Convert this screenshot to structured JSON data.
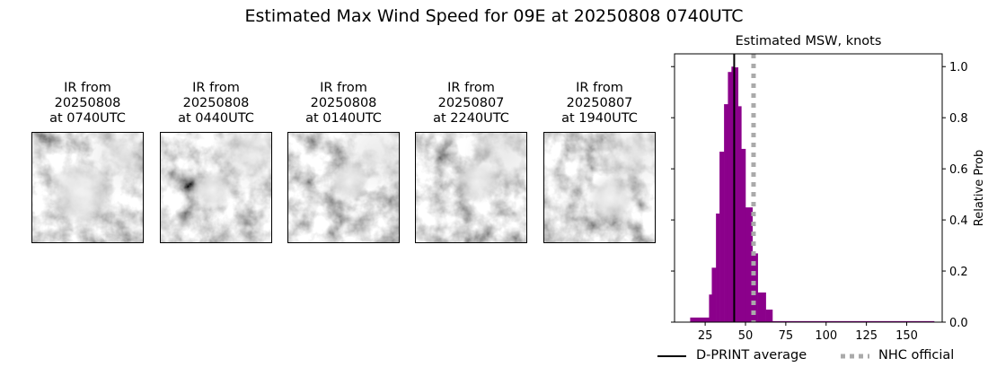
{
  "title": "Estimated Max Wind Speed for 09E at 20250808 0740UTC",
  "panels": [
    {
      "line1": "IR from",
      "line2": "20250808",
      "line3": "at 0740UTC",
      "seed": 3,
      "blob": [
        0.45,
        0.55,
        0.3
      ]
    },
    {
      "line1": "IR from",
      "line2": "20250808",
      "line3": "at 0440UTC",
      "seed": 7,
      "blob": [
        0.47,
        0.52,
        0.18
      ]
    },
    {
      "line1": "IR from",
      "line2": "20250808",
      "line3": "at 0140UTC",
      "seed": 11,
      "blob": [
        0.55,
        0.45,
        0.18
      ]
    },
    {
      "line1": "IR from",
      "line2": "20250807",
      "line3": "at 2240UTC",
      "seed": 17,
      "blob": [
        0.55,
        0.45,
        0.2
      ]
    },
    {
      "line1": "IR from",
      "line2": "20250807",
      "line3": "at 1940UTC",
      "seed": 23,
      "blob": [
        0.6,
        0.6,
        0.22
      ]
    }
  ],
  "chart_data": {
    "type": "bar",
    "title": "Estimated MSW, knots",
    "xlabel": "",
    "ylabel": "Relative Prob",
    "xlim": [
      6,
      172
    ],
    "ylim": [
      0,
      1.05
    ],
    "xticks": [
      25,
      50,
      75,
      100,
      125,
      150
    ],
    "yticks": [
      "0.0",
      "0.2",
      "0.4",
      "0.6",
      "0.8",
      "1.0"
    ],
    "bar_color": "#8b008b",
    "bins": [
      [
        15.7,
        27.4,
        0.018
      ],
      [
        27.4,
        29.1,
        0.108
      ],
      [
        29.1,
        31.7,
        0.213
      ],
      [
        31.7,
        33.9,
        0.425
      ],
      [
        33.9,
        36.7,
        0.667
      ],
      [
        36.7,
        39.1,
        0.853
      ],
      [
        39.1,
        41.3,
        0.979
      ],
      [
        41.3,
        43.2,
        1.0
      ],
      [
        43.2,
        45.4,
        0.997
      ],
      [
        45.4,
        47.4,
        0.845
      ],
      [
        47.4,
        50.0,
        0.678
      ],
      [
        50.0,
        54.3,
        0.449
      ],
      [
        54.3,
        57.6,
        0.269
      ],
      [
        57.6,
        62.6,
        0.116
      ],
      [
        62.6,
        66.7,
        0.049
      ],
      [
        66.7,
        167.0,
        0.004
      ]
    ],
    "dprint_average": 43,
    "nhc_official": 55,
    "legend": [
      {
        "label": "D-PRINT average",
        "color": "#000000",
        "style": "solid"
      },
      {
        "label": "NHC official",
        "color": "#aaaaaa",
        "style": "dotted"
      }
    ],
    "legend_placement": "bottom"
  }
}
